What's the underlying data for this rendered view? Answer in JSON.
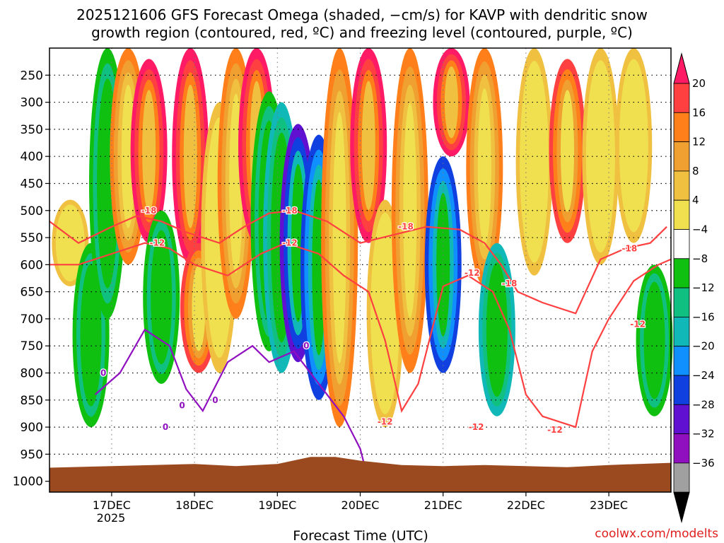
{
  "chart_data": {
    "type": "heatmap",
    "title_line1": "2025121606 GFS Forecast Omega (shaded, −cm/s) for KAVP with dendritic snow",
    "title_line2": "growth region (contoured, red, ºC) and freezing level (contoured, purple, ºC)",
    "xlabel": "Forecast Time (UTC)",
    "credit": "coolwx.com/modelts",
    "y_ticks": [
      "250",
      "300",
      "350",
      "400",
      "450",
      "500",
      "550",
      "600",
      "650",
      "700",
      "750",
      "800",
      "850",
      "900",
      "950",
      "1000"
    ],
    "y_tick_values": [
      250,
      300,
      350,
      400,
      450,
      500,
      550,
      600,
      650,
      700,
      750,
      800,
      850,
      900,
      950,
      1000
    ],
    "y_range": [
      200,
      1020
    ],
    "x_ticks": [
      "17DEC",
      "18DEC",
      "19DEC",
      "20DEC",
      "21DEC",
      "22DEC",
      "23DEC"
    ],
    "x_tick_values": [
      17,
      18,
      19,
      20,
      21,
      22,
      23
    ],
    "x_range": [
      16.25,
      23.75
    ],
    "x_year_label": "2025",
    "colorbar_labels": [
      "20",
      "16",
      "12",
      "8",
      "4",
      "−4",
      "−8",
      "−12",
      "−16",
      "−20",
      "−24",
      "−28",
      "−32",
      "−36"
    ],
    "colorbar_colors": [
      "#ff1a66",
      "#ff4040",
      "#ff7f1a",
      "#f0a030",
      "#f0c040",
      "#f0e050",
      "#ffffff",
      "#10c010",
      "#10c080",
      "#10b8b8",
      "#1090ff",
      "#1040e0",
      "#6010d0",
      "#9010c0",
      "#a0a0a0",
      "#000000"
    ],
    "omega_columns": [
      {
        "t": 16.5,
        "top": 480,
        "bottom": 640,
        "fill": "yellow"
      },
      {
        "t": 16.75,
        "top": 560,
        "bottom": 900,
        "fill": "green"
      },
      {
        "t": 16.95,
        "top": 200,
        "bottom": 700,
        "fill": "green"
      },
      {
        "t": 17.2,
        "top": 200,
        "bottom": 600,
        "fill": "orange"
      },
      {
        "t": 17.45,
        "top": 220,
        "bottom": 560,
        "fill": "magenta"
      },
      {
        "t": 17.6,
        "top": 500,
        "bottom": 820,
        "fill": "green"
      },
      {
        "t": 17.95,
        "top": 200,
        "bottom": 600,
        "fill": "magenta"
      },
      {
        "t": 18.05,
        "top": 560,
        "bottom": 800,
        "fill": "red"
      },
      {
        "t": 18.3,
        "top": 300,
        "bottom": 800,
        "fill": "yellow"
      },
      {
        "t": 18.5,
        "top": 200,
        "bottom": 700,
        "fill": "orange"
      },
      {
        "t": 18.75,
        "top": 200,
        "bottom": 560,
        "fill": "magenta"
      },
      {
        "t": 18.9,
        "top": 280,
        "bottom": 760,
        "fill": "green"
      },
      {
        "t": 19.05,
        "top": 300,
        "bottom": 800,
        "fill": "cyan"
      },
      {
        "t": 19.25,
        "top": 340,
        "bottom": 780,
        "fill": "purple"
      },
      {
        "t": 19.5,
        "top": 360,
        "bottom": 850,
        "fill": "blue"
      },
      {
        "t": 19.75,
        "top": 200,
        "bottom": 900,
        "fill": "orange"
      },
      {
        "t": 20.1,
        "top": 200,
        "bottom": 560,
        "fill": "magenta"
      },
      {
        "t": 20.3,
        "top": 480,
        "bottom": 900,
        "fill": "yellow"
      },
      {
        "t": 20.6,
        "top": 200,
        "bottom": 800,
        "fill": "orange"
      },
      {
        "t": 21.0,
        "top": 400,
        "bottom": 800,
        "fill": "blue"
      },
      {
        "t": 21.1,
        "top": 200,
        "bottom": 400,
        "fill": "magenta"
      },
      {
        "t": 21.5,
        "top": 200,
        "bottom": 640,
        "fill": "orange"
      },
      {
        "t": 21.65,
        "top": 560,
        "bottom": 880,
        "fill": "cyan"
      },
      {
        "t": 22.1,
        "top": 200,
        "bottom": 620,
        "fill": "yellow"
      },
      {
        "t": 22.5,
        "top": 220,
        "bottom": 560,
        "fill": "red"
      },
      {
        "t": 22.9,
        "top": 200,
        "bottom": 600,
        "fill": "yellow"
      },
      {
        "t": 23.3,
        "top": 200,
        "bottom": 560,
        "fill": "yellow"
      },
      {
        "t": 23.55,
        "top": 600,
        "bottom": 880,
        "fill": "green"
      }
    ],
    "contours": [
      {
        "name": "-18",
        "color": "#ff4040",
        "points": [
          [
            16.25,
            520
          ],
          [
            16.6,
            560
          ],
          [
            17.0,
            530
          ],
          [
            17.3,
            510
          ],
          [
            17.6,
            520
          ],
          [
            17.9,
            540
          ],
          [
            18.3,
            560
          ],
          [
            18.6,
            530
          ],
          [
            18.9,
            505
          ],
          [
            19.2,
            500
          ],
          [
            19.6,
            520
          ],
          [
            20.0,
            560
          ],
          [
            20.4,
            545
          ],
          [
            20.8,
            530
          ],
          [
            21.2,
            535
          ],
          [
            21.5,
            560
          ],
          [
            21.7,
            600
          ],
          [
            21.9,
            650
          ],
          [
            22.2,
            670
          ],
          [
            22.6,
            690
          ],
          [
            22.9,
            590
          ],
          [
            23.2,
            570
          ],
          [
            23.5,
            560
          ],
          [
            23.7,
            530
          ]
        ]
      },
      {
        "name": "-12",
        "color": "#ff4040",
        "points": [
          [
            16.25,
            600
          ],
          [
            16.6,
            600
          ],
          [
            17.0,
            580
          ],
          [
            17.4,
            560
          ],
          [
            17.7,
            570
          ],
          [
            18.0,
            600
          ],
          [
            18.4,
            620
          ],
          [
            18.8,
            580
          ],
          [
            19.1,
            560
          ],
          [
            19.5,
            580
          ],
          [
            19.8,
            620
          ],
          [
            20.1,
            650
          ],
          [
            20.3,
            740
          ],
          [
            20.5,
            870
          ],
          [
            20.7,
            820
          ],
          [
            21.0,
            640
          ],
          [
            21.3,
            620
          ],
          [
            21.6,
            650
          ],
          [
            21.8,
            720
          ],
          [
            22.0,
            840
          ],
          [
            22.2,
            880
          ],
          [
            22.6,
            900
          ],
          [
            22.8,
            760
          ],
          [
            23.0,
            700
          ],
          [
            23.3,
            630
          ],
          [
            23.6,
            600
          ],
          [
            23.75,
            590
          ]
        ]
      },
      {
        "name": "0",
        "color": "#9010c0",
        "points": [
          [
            16.8,
            840
          ],
          [
            17.1,
            800
          ],
          [
            17.4,
            720
          ],
          [
            17.7,
            750
          ],
          [
            17.9,
            830
          ],
          [
            18.1,
            870
          ],
          [
            18.4,
            780
          ],
          [
            18.7,
            750
          ],
          [
            18.9,
            780
          ],
          [
            19.2,
            760
          ],
          [
            19.5,
            820
          ],
          [
            19.8,
            880
          ],
          [
            20.0,
            940
          ],
          [
            20.1,
            1000
          ]
        ]
      }
    ],
    "contour_labels": [
      {
        "text": "-18",
        "t": 17.45,
        "p": 500,
        "color": "#ff4040"
      },
      {
        "text": "-12",
        "t": 17.55,
        "p": 560,
        "color": "#ff4040"
      },
      {
        "text": "-18",
        "t": 19.15,
        "p": 500,
        "color": "#ff4040"
      },
      {
        "text": "-12",
        "t": 19.15,
        "p": 560,
        "color": "#ff4040"
      },
      {
        "text": "-18",
        "t": 20.55,
        "p": 530,
        "color": "#ff4040"
      },
      {
        "text": "-12",
        "t": 21.35,
        "p": 615,
        "color": "#ff4040"
      },
      {
        "text": "-18",
        "t": 21.8,
        "p": 635,
        "color": "#ff4040"
      },
      {
        "text": "-12",
        "t": 20.3,
        "p": 890,
        "color": "#ff4040"
      },
      {
        "text": "-12",
        "t": 21.4,
        "p": 900,
        "color": "#ff4040"
      },
      {
        "text": "-12",
        "t": 22.35,
        "p": 905,
        "color": "#ff4040"
      },
      {
        "text": "-18",
        "t": 23.25,
        "p": 570,
        "color": "#ff4040"
      },
      {
        "text": "-12",
        "t": 23.35,
        "p": 710,
        "color": "#ff4040"
      },
      {
        "text": "0",
        "t": 16.9,
        "p": 800,
        "color": "#9010c0"
      },
      {
        "text": "0",
        "t": 17.85,
        "p": 860,
        "color": "#9010c0"
      },
      {
        "text": "0",
        "t": 17.65,
        "p": 900,
        "color": "#9010c0"
      },
      {
        "text": "0",
        "t": 18.25,
        "p": 850,
        "color": "#9010c0"
      },
      {
        "text": "0",
        "t": 19.35,
        "p": 750,
        "color": "#9010c0"
      }
    ],
    "terrain_top": [
      [
        16.25,
        975
      ],
      [
        17.0,
        972
      ],
      [
        17.5,
        970
      ],
      [
        18.0,
        968
      ],
      [
        18.5,
        972
      ],
      [
        19.0,
        968
      ],
      [
        19.4,
        955
      ],
      [
        19.7,
        955
      ],
      [
        20.0,
        962
      ],
      [
        20.5,
        970
      ],
      [
        21.0,
        972
      ],
      [
        21.5,
        970
      ],
      [
        22.0,
        972
      ],
      [
        22.5,
        974
      ],
      [
        23.0,
        970
      ],
      [
        23.75,
        966
      ]
    ]
  }
}
